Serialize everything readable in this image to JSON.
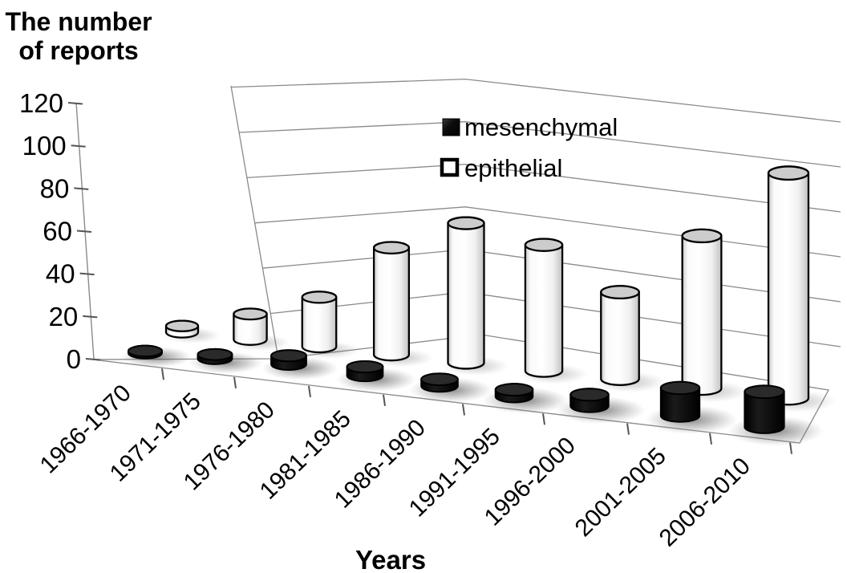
{
  "figure": {
    "background": "#ffffff"
  },
  "chart_data": {
    "type": "bar",
    "style": "3d-cylinder",
    "title": "",
    "ylabel": "The number of reports",
    "ylabel_lines": [
      "The number",
      "of reports"
    ],
    "xlabel": "Years",
    "categories": [
      "1966-1970",
      "1971-1975",
      "1976-1980",
      "1981-1985",
      "1986-1990",
      "1991-1995",
      "1996-2000",
      "2001-2005",
      "2006-2010"
    ],
    "series": [
      {
        "name": "mesenchymal",
        "color": "#0d0d0d",
        "values": [
          1,
          2,
          4,
          4,
          3,
          3,
          5,
          12,
          15
        ]
      },
      {
        "name": "epithelial",
        "color": "#ffffff",
        "values": [
          3,
          12,
          23,
          49,
          63,
          56,
          38,
          66,
          96
        ]
      }
    ],
    "ylim": [
      0,
      120
    ],
    "yticks": [
      0,
      20,
      40,
      60,
      80,
      100,
      120
    ],
    "grid": true,
    "legend_position": "top-center",
    "gridline_color": "#8a8a8a"
  }
}
